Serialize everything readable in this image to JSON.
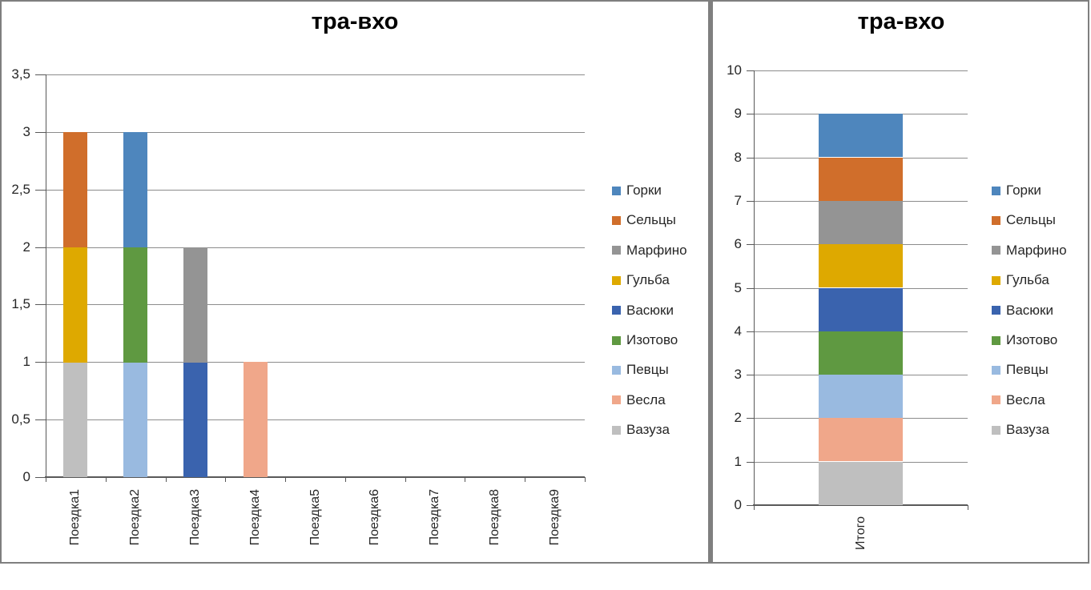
{
  "window": {
    "background": "#FFFFFF",
    "frame_color": "#7F7F7F"
  },
  "style": {
    "gridline_color": "#8C8C8C",
    "axis_color": "#595959",
    "label_color": "#262626",
    "title_color": "#000000"
  },
  "chart_data": [
    {
      "type": "bar",
      "stacked": true,
      "title": "тра-вхо",
      "categories": [
        "Поездка1",
        "Поездка2",
        "Поездка3",
        "Поездка4",
        "Поездка5",
        "Поездка6",
        "Поездка7",
        "Поездка8",
        "Поездка9"
      ],
      "series": [
        {
          "name": "Горки",
          "color": "#4E86BD",
          "values": [
            0,
            1,
            0,
            0,
            0,
            0,
            0,
            0,
            0
          ]
        },
        {
          "name": "Сельцы",
          "color": "#D06E2B",
          "values": [
            1,
            0,
            0,
            0,
            0,
            0,
            0,
            0,
            0
          ]
        },
        {
          "name": "Марфино",
          "color": "#949494",
          "values": [
            0,
            0,
            1,
            0,
            0,
            0,
            0,
            0,
            0
          ]
        },
        {
          "name": "Гульба",
          "color": "#DEA900",
          "values": [
            1,
            0,
            0,
            0,
            0,
            0,
            0,
            0,
            0
          ]
        },
        {
          "name": "Васюки",
          "color": "#3A63AE",
          "values": [
            0,
            0,
            1,
            0,
            0,
            0,
            0,
            0,
            0
          ]
        },
        {
          "name": "Изотово",
          "color": "#5F9941",
          "values": [
            0,
            1,
            0,
            0,
            0,
            0,
            0,
            0,
            0
          ]
        },
        {
          "name": "Певцы",
          "color": "#99BAE0",
          "values": [
            0,
            1,
            0,
            0,
            0,
            0,
            0,
            0,
            0
          ]
        },
        {
          "name": "Весла",
          "color": "#F0A78A",
          "values": [
            0,
            0,
            0,
            1,
            0,
            0,
            0,
            0,
            0
          ]
        },
        {
          "name": "Вазуза",
          "color": "#BFBFBF",
          "values": [
            1,
            0,
            0,
            0,
            0,
            0,
            0,
            0,
            0
          ]
        }
      ],
      "y_axis": {
        "min": 0,
        "max": 3.5,
        "step": 0.5,
        "tick_labels": [
          "0",
          "0,5",
          "1",
          "1,5",
          "2",
          "2,5",
          "3",
          "3,5"
        ]
      },
      "ylim": [
        0,
        3.5
      ],
      "grid": true,
      "legend_position": "right",
      "x_label_rotation": -90
    },
    {
      "type": "bar",
      "stacked": true,
      "title": "тра-вхо",
      "categories": [
        "Итого"
      ],
      "series": [
        {
          "name": "Горки",
          "color": "#4E86BD",
          "values": [
            1
          ]
        },
        {
          "name": "Сельцы",
          "color": "#D06E2B",
          "values": [
            1
          ]
        },
        {
          "name": "Марфино",
          "color": "#949494",
          "values": [
            1
          ]
        },
        {
          "name": "Гульба",
          "color": "#DEA900",
          "values": [
            1
          ]
        },
        {
          "name": "Васюки",
          "color": "#3A63AE",
          "values": [
            1
          ]
        },
        {
          "name": "Изотово",
          "color": "#5F9941",
          "values": [
            1
          ]
        },
        {
          "name": "Певцы",
          "color": "#99BAE0",
          "values": [
            1
          ]
        },
        {
          "name": "Весла",
          "color": "#F0A78A",
          "values": [
            1
          ]
        },
        {
          "name": "Вазуза",
          "color": "#BFBFBF",
          "values": [
            1
          ]
        }
      ],
      "y_axis": {
        "min": 0,
        "max": 10,
        "step": 1,
        "tick_labels": [
          "0",
          "1",
          "2",
          "3",
          "4",
          "5",
          "6",
          "7",
          "8",
          "9",
          "10"
        ]
      },
      "ylim": [
        0,
        10
      ],
      "grid": true,
      "legend_position": "right",
      "x_label_rotation": -90
    }
  ]
}
